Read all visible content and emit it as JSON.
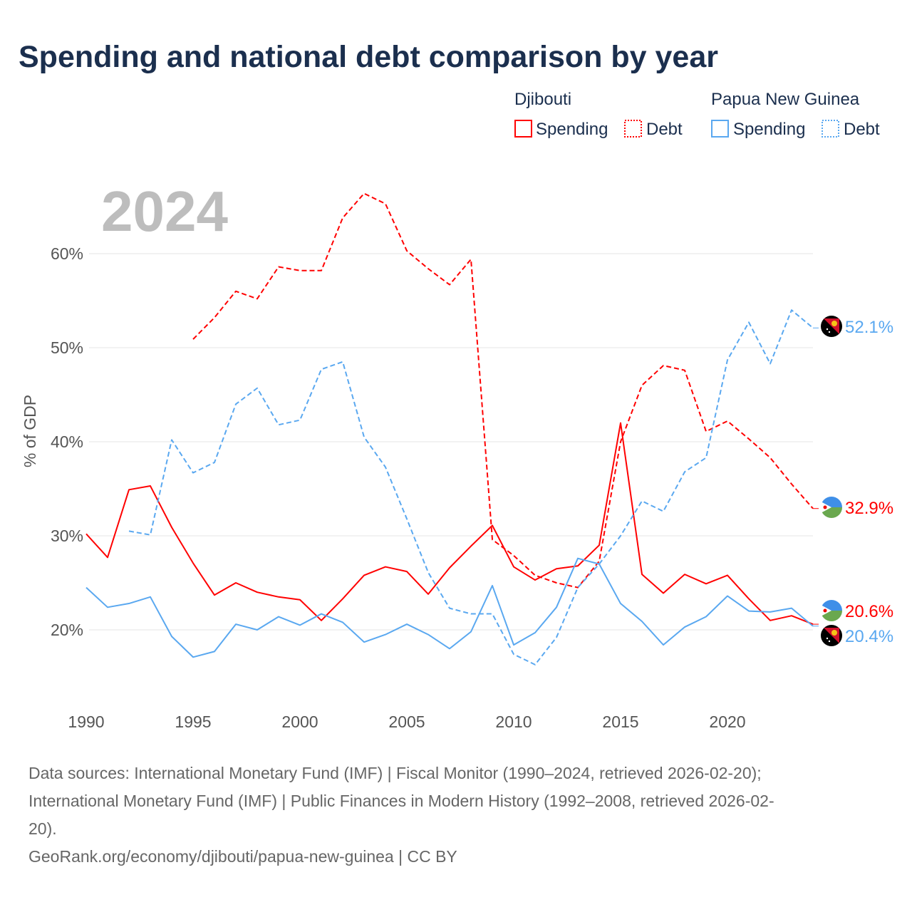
{
  "chart_data": {
    "type": "line",
    "title": "Spending and national debt comparison by year",
    "year_label": "2024",
    "ylabel": "% of GDP",
    "xlabel": "",
    "xlim": [
      1990,
      2024
    ],
    "ylim": [
      15,
      67
    ],
    "x_ticks": [
      "1990",
      "1995",
      "2000",
      "2005",
      "2010",
      "2015",
      "2020"
    ],
    "y_ticks": [
      {
        "v": 20,
        "label": "20%"
      },
      {
        "v": 30,
        "label": "30%"
      },
      {
        "v": 40,
        "label": "40%"
      },
      {
        "v": 50,
        "label": "50%"
      },
      {
        "v": 60,
        "label": "60%"
      }
    ],
    "grid": true,
    "legend": {
      "placement": "top-right",
      "groups": [
        {
          "country": "Djibouti",
          "spending": "Spending",
          "debt": "Debt",
          "color": "#ff0000"
        },
        {
          "country": "Papua New Guinea",
          "spending": "Spending",
          "debt": "Debt",
          "color": "#5aa8f0"
        }
      ]
    },
    "series": [
      {
        "name": "Djibouti Spending",
        "color": "#ff0000",
        "dash": false,
        "start": 1990,
        "end_label": "20.6%",
        "values": [
          30.2,
          27.7,
          34.9,
          35.3,
          30.9,
          27.1,
          23.7,
          25.0,
          24.0,
          23.5,
          23.2,
          21.0,
          23.3,
          25.8,
          26.7,
          26.2,
          23.8,
          26.6,
          28.9,
          31.1,
          26.7,
          25.3,
          26.5,
          26.8,
          29.0,
          42.0,
          25.9,
          23.9,
          25.9,
          24.9,
          25.8,
          23.3,
          21.0,
          21.5,
          20.6
        ]
      },
      {
        "name": "Djibouti Debt",
        "color": "#ff0000",
        "dash": true,
        "start": 1995,
        "end_label": "32.9%",
        "values": [
          50.9,
          53.2,
          56.0,
          55.2,
          58.6,
          58.2,
          58.2,
          63.8,
          66.4,
          65.3,
          60.3,
          58.4,
          56.7,
          59.4,
          29.6,
          27.9,
          25.8,
          25.0,
          24.5,
          27.3,
          40.0,
          46.0,
          48.1,
          47.6,
          41.1,
          42.2,
          40.3,
          38.3,
          35.5,
          32.9
        ]
      },
      {
        "name": "Papua New Guinea Spending",
        "color": "#5aa8f0",
        "dash": false,
        "start": 1990,
        "end_label": "20.4%",
        "values": [
          24.5,
          22.4,
          22.8,
          23.5,
          19.3,
          17.1,
          17.7,
          20.6,
          20.0,
          21.4,
          20.5,
          21.7,
          20.8,
          18.7,
          19.5,
          20.6,
          19.5,
          18.0,
          19.8,
          24.7,
          18.4,
          19.7,
          22.4,
          27.6,
          27.0,
          22.8,
          20.9,
          18.4,
          20.3,
          21.4,
          23.6,
          22.0,
          21.9,
          22.3,
          20.4
        ]
      },
      {
        "name": "Papua New Guinea Debt",
        "color": "#5aa8f0",
        "dash": true,
        "start": 1992,
        "end_label": "52.1%",
        "values": [
          30.5,
          30.1,
          40.2,
          36.7,
          37.8,
          44.0,
          45.7,
          41.8,
          42.3,
          47.7,
          48.5,
          40.5,
          37.3,
          31.8,
          26.1,
          22.3,
          21.7,
          21.7,
          17.4,
          16.3,
          19.2,
          24.5,
          27.0,
          30.0,
          33.7,
          32.6,
          36.8,
          38.3,
          48.7,
          52.7,
          48.3,
          54.0,
          52.1
        ]
      }
    ]
  },
  "footer": {
    "line1": "Data sources: International Monetary Fund (IMF) | Fiscal Monitor (1990–2024, retrieved 2026-02-20);",
    "line2": "International Monetary Fund (IMF) | Public Finances in Modern History (1992–2008, retrieved 2026-02-",
    "line3": "20).",
    "line4": "GeoRank.org/economy/djibouti/papua-new-guinea | CC BY"
  }
}
